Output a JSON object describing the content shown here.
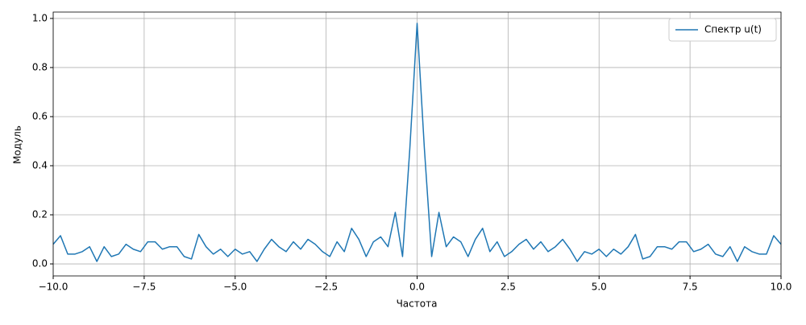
{
  "chart_data": {
    "type": "line",
    "xlabel": "Частота",
    "ylabel": "Модуль",
    "x": [
      -10,
      -9.8,
      -9.6,
      -9.4,
      -9.2,
      -9,
      -8.8,
      -8.6,
      -8.4,
      -8.2,
      -8,
      -7.8,
      -7.6,
      -7.4,
      -7.2,
      -7,
      -6.8,
      -6.6,
      -6.4,
      -6.2,
      -6,
      -5.8,
      -5.6,
      -5.4,
      -5.2,
      -5,
      -4.8,
      -4.6,
      -4.4,
      -4.2,
      -4,
      -3.8,
      -3.6,
      -3.4,
      -3.2,
      -3,
      -2.8,
      -2.6,
      -2.4,
      -2.2,
      -2,
      -1.8,
      -1.6,
      -1.4,
      -1.2,
      -1,
      -0.8,
      -0.6,
      -0.4,
      -0.2,
      0,
      0.2,
      0.4,
      0.6,
      0.8,
      1,
      1.2,
      1.4,
      1.6,
      1.8,
      2,
      2.2,
      2.4,
      2.6,
      2.8,
      3,
      3.2,
      3.4,
      3.6,
      3.8,
      4,
      4.2,
      4.4,
      4.6,
      4.8,
      5,
      5.2,
      5.4,
      5.6,
      5.8,
      6,
      6.2,
      6.4,
      6.6,
      6.8,
      7,
      7.2,
      7.4,
      7.6,
      7.8,
      8,
      8.2,
      8.4,
      8.6,
      8.8,
      9,
      9.2,
      9.4,
      9.6,
      9.8,
      10
    ],
    "series": [
      {
        "name": "Спектр u(t)",
        "color": "#1f77b4",
        "values": [
          0.08,
          0.115,
          0.04,
          0.04,
          0.05,
          0.07,
          0.01,
          0.07,
          0.03,
          0.04,
          0.08,
          0.06,
          0.05,
          0.09,
          0.09,
          0.06,
          0.07,
          0.07,
          0.03,
          0.02,
          0.12,
          0.07,
          0.04,
          0.06,
          0.03,
          0.06,
          0.04,
          0.05,
          0.01,
          0.06,
          0.1,
          0.07,
          0.05,
          0.09,
          0.06,
          0.1,
          0.08,
          0.05,
          0.03,
          0.09,
          0.05,
          0.145,
          0.1,
          0.03,
          0.09,
          0.11,
          0.07,
          0.21,
          0.03,
          0.47,
          0.98,
          0.47,
          0.03,
          0.21,
          0.07,
          0.11,
          0.09,
          0.03,
          0.1,
          0.145,
          0.05,
          0.09,
          0.03,
          0.05,
          0.08,
          0.1,
          0.06,
          0.09,
          0.05,
          0.07,
          0.1,
          0.06,
          0.01,
          0.05,
          0.04,
          0.06,
          0.03,
          0.06,
          0.04,
          0.07,
          0.12,
          0.02,
          0.03,
          0.07,
          0.07,
          0.06,
          0.09,
          0.09,
          0.05,
          0.06,
          0.08,
          0.04,
          0.03,
          0.07,
          0.01,
          0.07,
          0.05,
          0.04,
          0.04,
          0.115,
          0.08
        ]
      }
    ],
    "xlim": [
      -10,
      10
    ],
    "xticks": [
      {
        "value": -10,
        "label": "−10.0"
      },
      {
        "value": -7.5,
        "label": "−7.5"
      },
      {
        "value": -5,
        "label": "−5.0"
      },
      {
        "value": -2.5,
        "label": "−2.5"
      },
      {
        "value": 0,
        "label": "0.0"
      },
      2.5,
      {
        "value": 5,
        "label": "5.0"
      },
      7.5,
      {
        "value": 10,
        "label": "10.0"
      }
    ],
    "ylim": [
      -0.049,
      1.026
    ],
    "yticks": [
      {
        "value": 0,
        "label": "0.0"
      },
      0.2,
      0.4,
      0.6,
      0.8,
      {
        "value": 1,
        "label": "1.0"
      }
    ],
    "grid": true,
    "legend": "upper-right"
  }
}
